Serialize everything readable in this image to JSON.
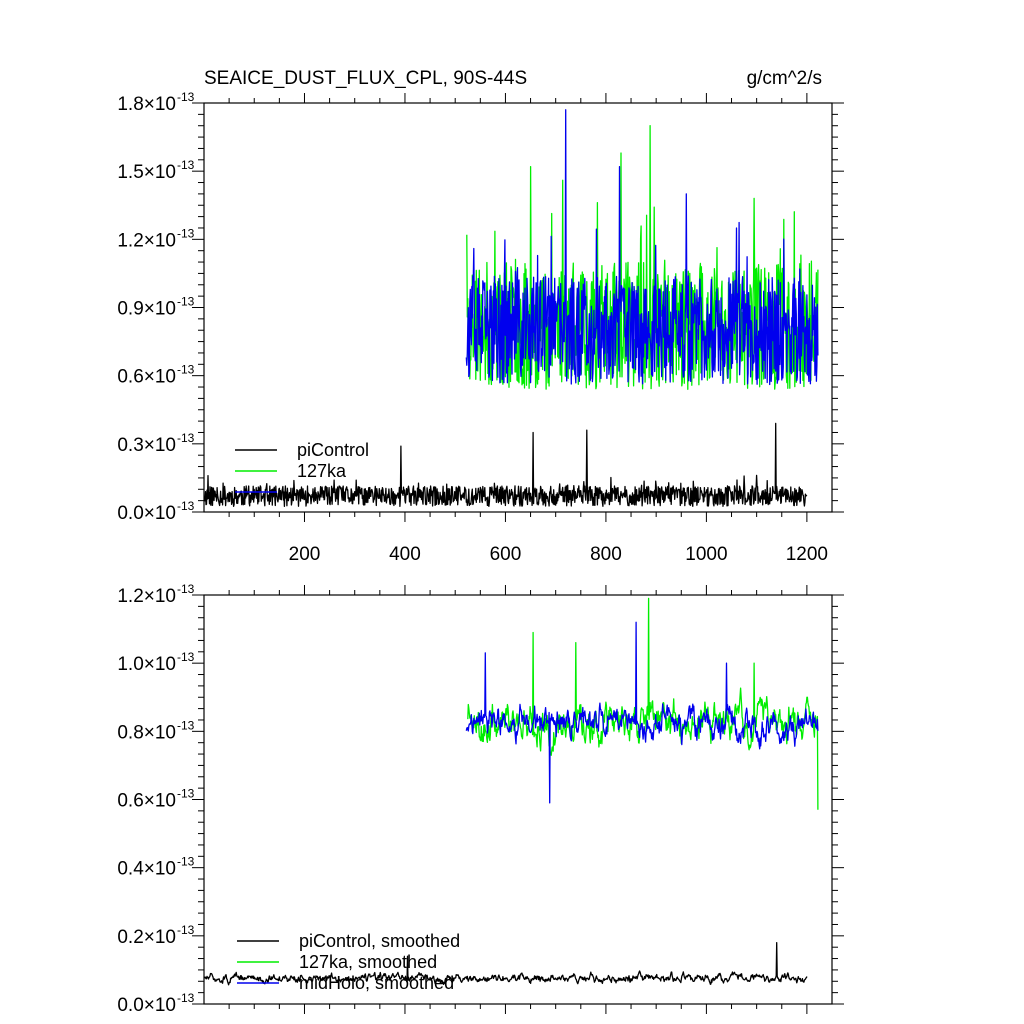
{
  "colors": {
    "piControl": "#000000",
    "127ka": "#00ee00",
    "midHolo": "#0000ee"
  },
  "header": {
    "title": "SEAICE_DUST_FLUX_CPL, 90S-44S",
    "units": "g/cm^2/s"
  },
  "chart_data": [
    {
      "type": "line",
      "panel": "raw",
      "xlim": [
        0,
        1250
      ],
      "ylim": [
        0.0,
        1.8
      ],
      "x_ticks": [
        200,
        400,
        600,
        800,
        1000,
        1200
      ],
      "x_tick_labels": [
        "200",
        "400",
        "600",
        "800",
        "1000",
        "1200"
      ],
      "y_ticks": [
        0.0,
        0.3,
        0.6,
        0.9,
        1.2,
        1.5,
        1.8
      ],
      "y_tick_labels": [
        {
          "mantissa": "0.0×10",
          "exp": "-13"
        },
        {
          "mantissa": "0.3×10",
          "exp": "-13"
        },
        {
          "mantissa": "0.6×10",
          "exp": "-13"
        },
        {
          "mantissa": "0.9×10",
          "exp": "-13"
        },
        {
          "mantissa": "1.2×10",
          "exp": "-13"
        },
        {
          "mantissa": "1.5×10",
          "exp": "-13"
        },
        {
          "mantissa": "1.8×10",
          "exp": "-13"
        }
      ],
      "legend": [
        "piControl",
        "127ka",
        ""
      ],
      "legend_position": "bottom-left",
      "series": [
        {
          "name": "piControl",
          "color": "#000000",
          "x_start": 1,
          "x_end": 1200,
          "base": 0.07,
          "amp": 0.045,
          "peaks": [
            [
              8,
              0.16
            ],
            [
              392,
              0.29
            ],
            [
              655,
              0.35
            ],
            [
              762,
              0.36
            ],
            [
              1138,
              0.39
            ]
          ],
          "seed": 11
        },
        {
          "name": "127ka",
          "color": "#00ee00",
          "x_start": 523,
          "x_end": 1222,
          "base": 0.82,
          "amp": 0.28,
          "peaks": [
            [
              523,
              1.22
            ],
            [
              650,
              1.52
            ],
            [
              714,
              1.46
            ],
            [
              830,
              1.58
            ],
            [
              888,
              1.7
            ],
            [
              1095,
              1.38
            ]
          ],
          "seed": 23
        },
        {
          "name": "midHolo",
          "color": "#0000ee",
          "x_start": 522,
          "x_end": 1222,
          "base": 0.8,
          "amp": 0.24,
          "peaks": [
            [
              720,
              1.77
            ],
            [
              827,
              1.52
            ],
            [
              960,
              1.4
            ],
            [
              1060,
              1.25
            ]
          ],
          "seed": 37
        }
      ]
    },
    {
      "type": "line",
      "panel": "smoothed",
      "xlim": [
        0,
        1250
      ],
      "ylim": [
        0.0,
        1.2
      ],
      "x_ticks": [
        200,
        400,
        600,
        800,
        1000,
        1200
      ],
      "x_tick_labels": [],
      "y_ticks": [
        0.0,
        0.2,
        0.4,
        0.6,
        0.8,
        1.0,
        1.2
      ],
      "y_tick_labels": [
        {
          "mantissa": "0.0×10",
          "exp": "-13"
        },
        {
          "mantissa": "0.2×10",
          "exp": "-13"
        },
        {
          "mantissa": "0.4×10",
          "exp": "-13"
        },
        {
          "mantissa": "0.6×10",
          "exp": "-13"
        },
        {
          "mantissa": "0.8×10",
          "exp": "-13"
        },
        {
          "mantissa": "1.0×10",
          "exp": "-13"
        },
        {
          "mantissa": "1.2×10",
          "exp": "-13"
        }
      ],
      "legend": [
        "piControl, smoothed",
        "127ka, smoothed",
        "midHolo, smoothed"
      ],
      "legend_position": "bottom-left",
      "series": [
        {
          "name": "piControl, smoothed",
          "color": "#000000",
          "x_start": 1,
          "x_end": 1200,
          "base": 0.075,
          "amp": 0.025,
          "peaks": [
            [
              1140,
              0.18
            ],
            [
              405,
              0.14
            ]
          ],
          "seed": 51
        },
        {
          "name": "127ka, smoothed",
          "color": "#00ee00",
          "x_start": 525,
          "x_end": 1222,
          "base": 0.83,
          "amp": 0.11,
          "peaks": [
            [
              885,
              1.19
            ],
            [
              655,
              1.09
            ],
            [
              740,
              1.06
            ],
            [
              1095,
              1.0
            ],
            [
              1222,
              0.57
            ]
          ],
          "seed": 63
        },
        {
          "name": "midHolo, smoothed",
          "color": "#0000ee",
          "x_start": 522,
          "x_end": 1222,
          "base": 0.82,
          "amp": 0.09,
          "peaks": [
            [
              860,
              1.12
            ],
            [
              560,
              1.03
            ],
            [
              1040,
              1.0
            ],
            [
              688,
              0.59
            ]
          ],
          "seed": 77
        }
      ]
    }
  ]
}
